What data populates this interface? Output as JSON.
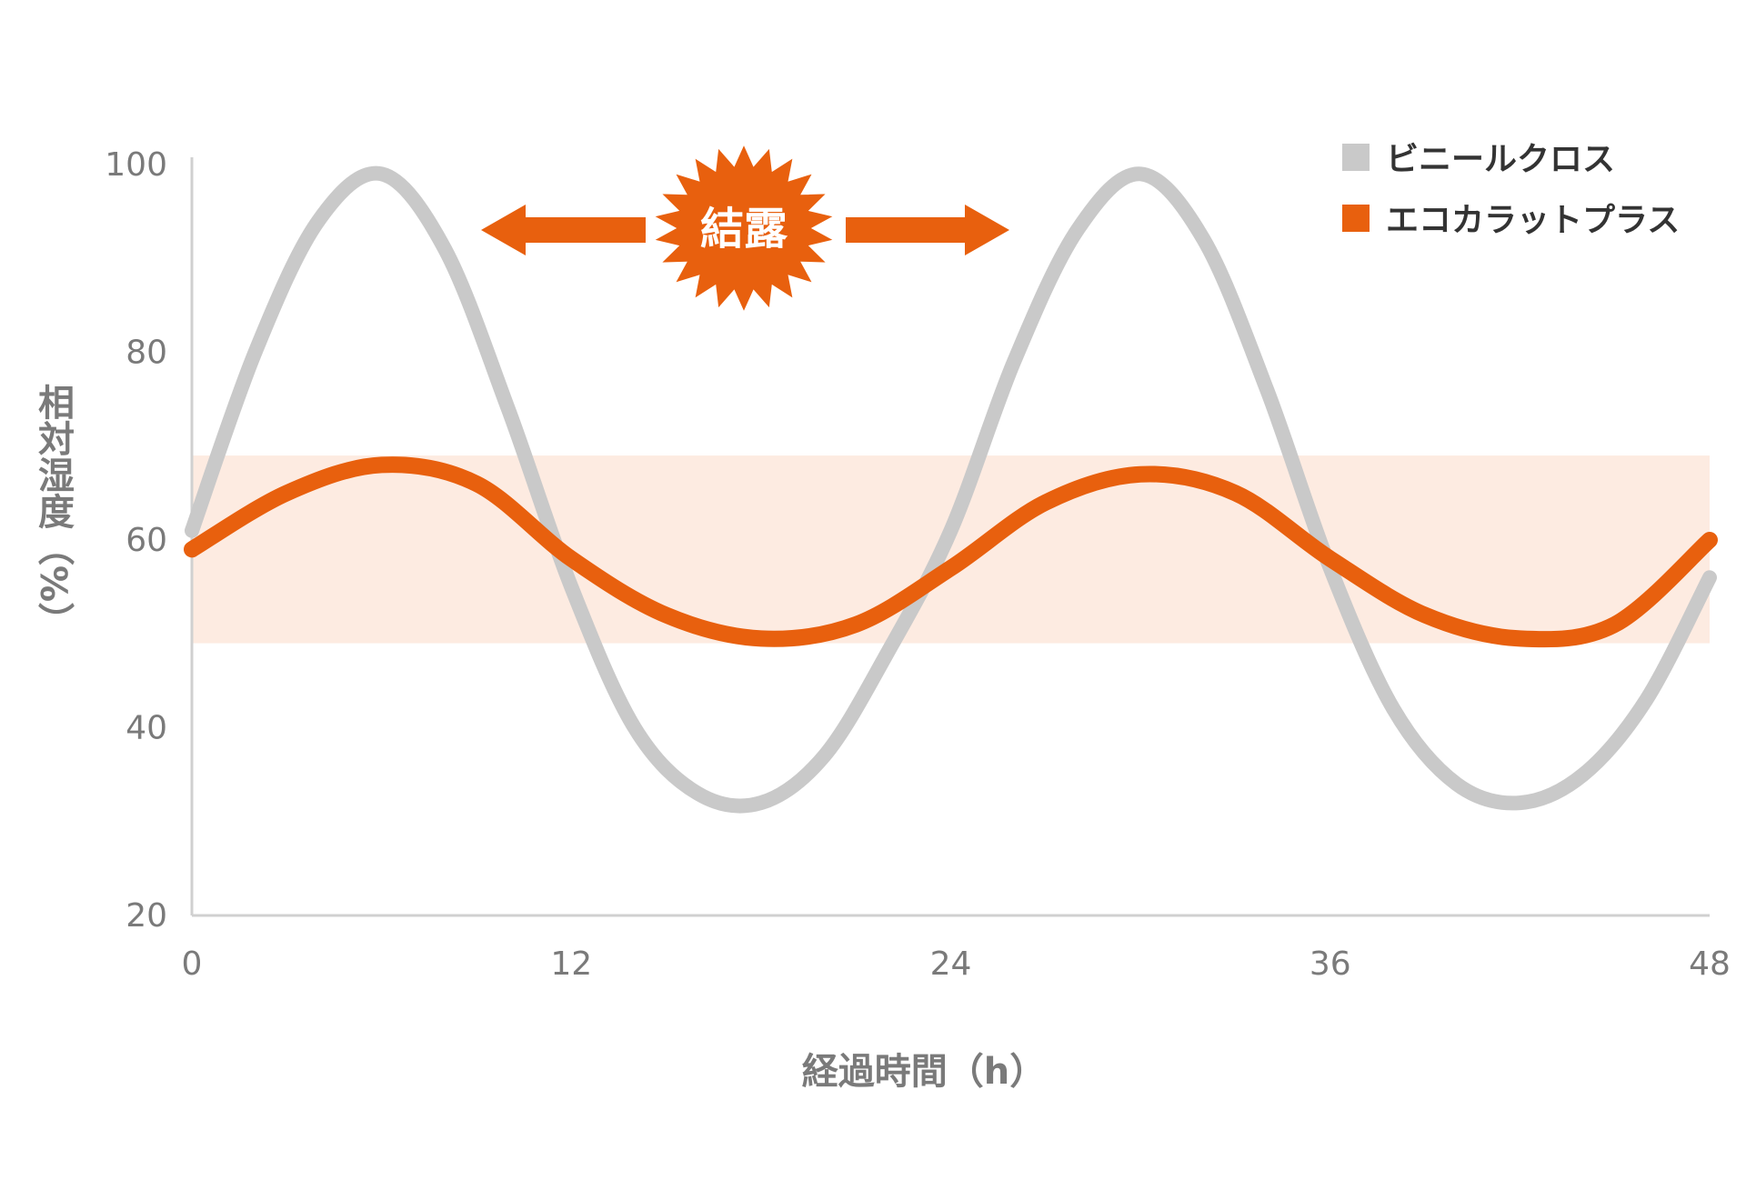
{
  "chart_data": {
    "type": "line",
    "xlabel": "経過時間（h）",
    "ylabel": "相対湿度（%）",
    "xlim": [
      0,
      48
    ],
    "ylim": [
      20,
      100
    ],
    "xticks": [
      "0",
      "12",
      "24",
      "36",
      "48"
    ],
    "yticks": [
      "20",
      "40",
      "60",
      "80",
      "100"
    ],
    "grid": false,
    "legend_position": "top-right",
    "comfort_band": [
      49,
      69
    ],
    "annotation": "結露",
    "series": [
      {
        "name": "ビニールクロス",
        "color": "#c9c9c9",
        "x": [
          0,
          2,
          4,
          6,
          8,
          10,
          12,
          14,
          16,
          18,
          20,
          22,
          24,
          26,
          28,
          30,
          32,
          34,
          36,
          38,
          40,
          42,
          44,
          46,
          48
        ],
        "y": [
          61,
          80,
          94,
          99,
          91,
          74,
          55,
          40,
          33,
          32,
          37,
          48,
          61,
          79,
          93,
          99,
          92,
          76,
          57,
          42,
          34,
          32,
          35,
          43,
          56
        ]
      },
      {
        "name": "エコカラットプラス",
        "color": "#e8600e",
        "x": [
          0,
          3,
          6,
          9,
          12,
          15,
          18,
          21,
          24,
          27,
          30,
          33,
          36,
          39,
          42,
          45,
          48
        ],
        "y": [
          59,
          65,
          68,
          66,
          58,
          52,
          49.5,
          51,
          57,
          64,
          67,
          65,
          58,
          52,
          49.5,
          51,
          60
        ]
      }
    ]
  },
  "colors": {
    "band": "#fdebe1",
    "axis": "#d0d0d0",
    "accent": "#e8600e"
  }
}
